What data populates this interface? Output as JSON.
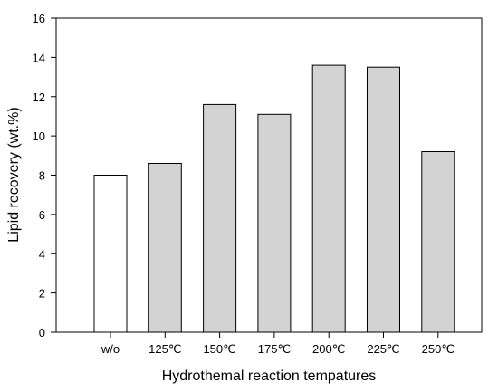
{
  "chart_data": {
    "type": "bar",
    "title": "",
    "xlabel": "Hydrothemal reaction tempatures",
    "ylabel": "Lipid recovery (wt.%)",
    "ylim": [
      0,
      16
    ],
    "yticks": [
      "0",
      "2",
      "4",
      "6",
      "8",
      "10",
      "12",
      "14",
      "16"
    ],
    "categories": [
      "w/o",
      "125℃",
      "150℃",
      "175℃",
      "200℃",
      "225℃",
      "250℃"
    ],
    "values": [
      8.0,
      8.6,
      11.6,
      11.1,
      13.6,
      13.5,
      9.2
    ],
    "bar_colors": [
      "#ffffff",
      "#d3d3d3",
      "#d3d3d3",
      "#d3d3d3",
      "#d3d3d3",
      "#d3d3d3",
      "#d3d3d3"
    ],
    "edge_color": "#000000",
    "grid": false,
    "legend": "none"
  }
}
